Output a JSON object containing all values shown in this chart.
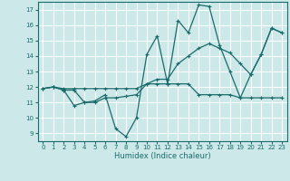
{
  "title": "",
  "xlabel": "Humidex (Indice chaleur)",
  "xlim": [
    -0.5,
    23.5
  ],
  "ylim": [
    8.5,
    17.5
  ],
  "yticks": [
    9,
    10,
    11,
    12,
    13,
    14,
    15,
    16,
    17
  ],
  "xticks": [
    0,
    1,
    2,
    3,
    4,
    5,
    6,
    7,
    8,
    9,
    10,
    11,
    12,
    13,
    14,
    15,
    16,
    17,
    18,
    19,
    20,
    21,
    22,
    23
  ],
  "bg_color": "#cce8e8",
  "grid_color": "#ffffff",
  "line_color": "#1a6b6b",
  "lines": [
    {
      "x": [
        0,
        1,
        2,
        3,
        4,
        5,
        6,
        7,
        8,
        9,
        10,
        11,
        12,
        13,
        14,
        15,
        16,
        17,
        18,
        19,
        20,
        21,
        22,
        23
      ],
      "y": [
        11.9,
        12.0,
        11.8,
        10.8,
        11.0,
        11.1,
        11.5,
        9.3,
        8.8,
        10.0,
        14.1,
        15.3,
        12.2,
        16.3,
        15.5,
        17.3,
        17.2,
        14.7,
        13.0,
        11.3,
        12.8,
        14.1,
        15.8,
        15.5
      ]
    },
    {
      "x": [
        0,
        1,
        2,
        3,
        4,
        5,
        6,
        7,
        8,
        9,
        10,
        11,
        12,
        13,
        14,
        15,
        16,
        17,
        18,
        19,
        20,
        21,
        22,
        23
      ],
      "y": [
        11.9,
        12.0,
        11.9,
        11.9,
        11.9,
        11.9,
        11.9,
        11.9,
        11.9,
        11.9,
        12.2,
        12.2,
        12.2,
        12.2,
        12.2,
        11.5,
        11.5,
        11.5,
        11.5,
        11.3,
        11.3,
        11.3,
        11.3,
        11.3
      ]
    },
    {
      "x": [
        0,
        1,
        2,
        3,
        4,
        5,
        6,
        7,
        8,
        9,
        10,
        11,
        12,
        13,
        14,
        15,
        16,
        17,
        18,
        19,
        20,
        21,
        22,
        23
      ],
      "y": [
        11.9,
        12.0,
        11.8,
        11.8,
        11.0,
        11.0,
        11.3,
        11.3,
        11.4,
        11.5,
        12.2,
        12.5,
        12.5,
        13.5,
        14.0,
        14.5,
        14.8,
        14.5,
        14.2,
        13.5,
        12.8,
        14.1,
        15.8,
        15.5
      ]
    }
  ]
}
